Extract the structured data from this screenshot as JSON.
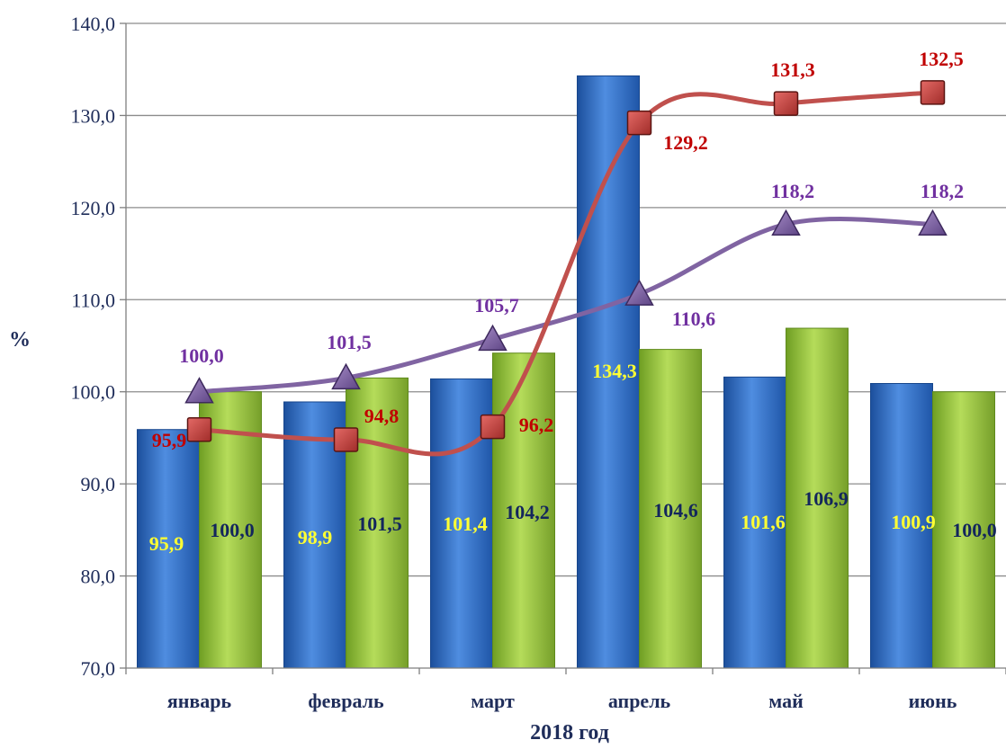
{
  "chart_data": {
    "type": "bar",
    "title": "",
    "xlabel": "2018 год",
    "ylabel": "%",
    "ylim": [
      70,
      140
    ],
    "yticks": [
      "70,0",
      "80,0",
      "90,0",
      "100,0",
      "110,0",
      "120,0",
      "130,0",
      "140,0"
    ],
    "categories": [
      "январь",
      "февраль",
      "март",
      "апрель",
      "май",
      "июнь"
    ],
    "grid": true,
    "legend": "none",
    "bar_series": [
      {
        "kind": "bar",
        "values": [
          95.9,
          98.9,
          101.4,
          134.3,
          101.6,
          100.9
        ],
        "labels": [
          "95,9",
          "98,9",
          "101,4",
          "134,3",
          "101,6",
          "100,9"
        ],
        "color": "#2e6fc6",
        "label_color": "#ffff33"
      },
      {
        "kind": "bar",
        "values": [
          100.0,
          101.5,
          104.2,
          104.6,
          106.9,
          100.0
        ],
        "labels": [
          "100,0",
          "101,5",
          "104,2",
          "104,6",
          "106,9",
          "100,0"
        ],
        "color": "#8fbe3a",
        "label_color": "#13265c"
      }
    ],
    "line_series": [
      {
        "kind": "line",
        "marker": "square",
        "values": [
          95.9,
          94.8,
          96.2,
          129.2,
          131.3,
          132.5
        ],
        "labels": [
          "95,9",
          "94,8",
          "96,2",
          "129,2",
          "131,3",
          "132,5"
        ],
        "color": "#c0504d",
        "label_color": "#c00000"
      },
      {
        "kind": "line",
        "marker": "triangle",
        "values": [
          100.0,
          101.5,
          105.7,
          110.6,
          118.2,
          118.2
        ],
        "labels": [
          "100,0",
          "101,5",
          "105,7",
          "110,6",
          "118,2",
          "118,2"
        ],
        "color": "#8064a2",
        "label_color": "#7030a0"
      }
    ]
  }
}
